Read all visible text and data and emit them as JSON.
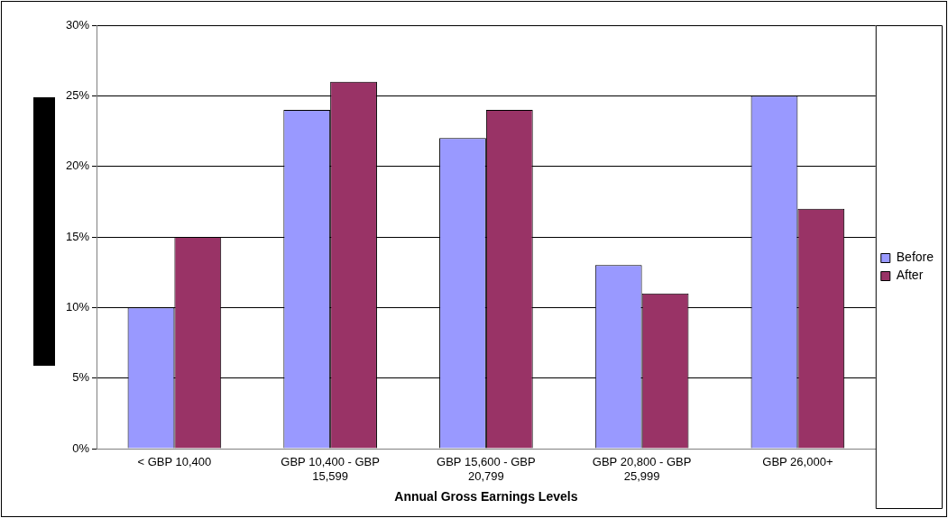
{
  "chart_data": {
    "type": "bar",
    "xlabel": "Annual Gross Earnings Levels",
    "categories": [
      "< GBP 10,400",
      "GBP 10,400 - GBP 15,599",
      "GBP 15,600 - GBP 20,799",
      "GBP 20,800 - GBP 25,999",
      "GBP 26,000+"
    ],
    "series": [
      {
        "name": "Before",
        "color": "#9999ff",
        "values": [
          10,
          24,
          22,
          13,
          25
        ]
      },
      {
        "name": "After",
        "color": "#993366",
        "values": [
          15,
          26,
          24,
          11,
          17
        ]
      }
    ],
    "ylim": [
      0,
      30
    ],
    "yticks": [
      {
        "value": 0,
        "label": "0%"
      },
      {
        "value": 5,
        "label": "5%"
      },
      {
        "value": 10,
        "label": "10%"
      },
      {
        "value": 15,
        "label": "15%"
      },
      {
        "value": 20,
        "label": "20%"
      },
      {
        "value": 25,
        "label": "25%"
      },
      {
        "value": 30,
        "label": "30%"
      }
    ],
    "grid": "y",
    "legend": "right"
  }
}
